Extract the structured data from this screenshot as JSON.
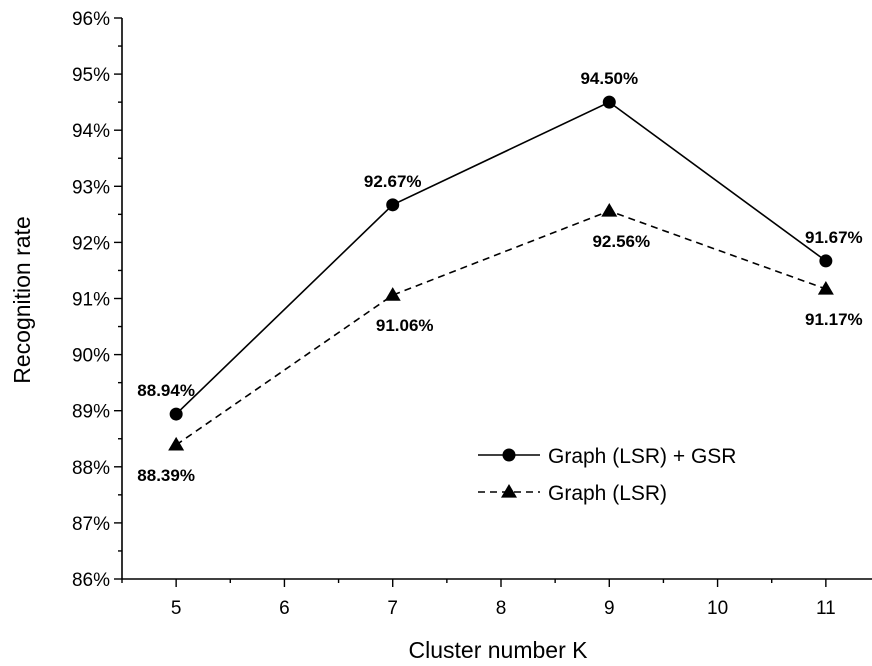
{
  "chart_data": {
    "type": "line",
    "x": [
      5,
      7,
      9,
      11
    ],
    "xlabel": "Cluster number K",
    "ylabel": "Recognition rate",
    "xlim": [
      4.5,
      11.5
    ],
    "ylim": [
      86,
      96
    ],
    "x_ticks": [
      5,
      6,
      7,
      8,
      9,
      10,
      11
    ],
    "y_ticks": [
      86,
      87,
      88,
      89,
      90,
      91,
      92,
      93,
      94,
      95,
      96
    ],
    "y_tick_suffix": "%",
    "grid": false,
    "legend_position": "bottom-right",
    "series": [
      {
        "name": "Graph (LSR) + GSR",
        "values": [
          88.94,
          92.67,
          94.5,
          91.67
        ],
        "labels": [
          "88.94%",
          "92.67%",
          "94.50%",
          "91.67%"
        ],
        "marker": "circle",
        "line_style": "solid",
        "label_position": "above"
      },
      {
        "name": "Graph (LSR)",
        "values": [
          88.39,
          91.06,
          92.56,
          91.17
        ],
        "labels": [
          "88.39%",
          "91.06%",
          "92.56%",
          "91.17%"
        ],
        "marker": "triangle",
        "line_style": "dashed",
        "label_position": "below"
      }
    ],
    "colors": {
      "line": "#000000",
      "background": "#ffffff"
    }
  }
}
